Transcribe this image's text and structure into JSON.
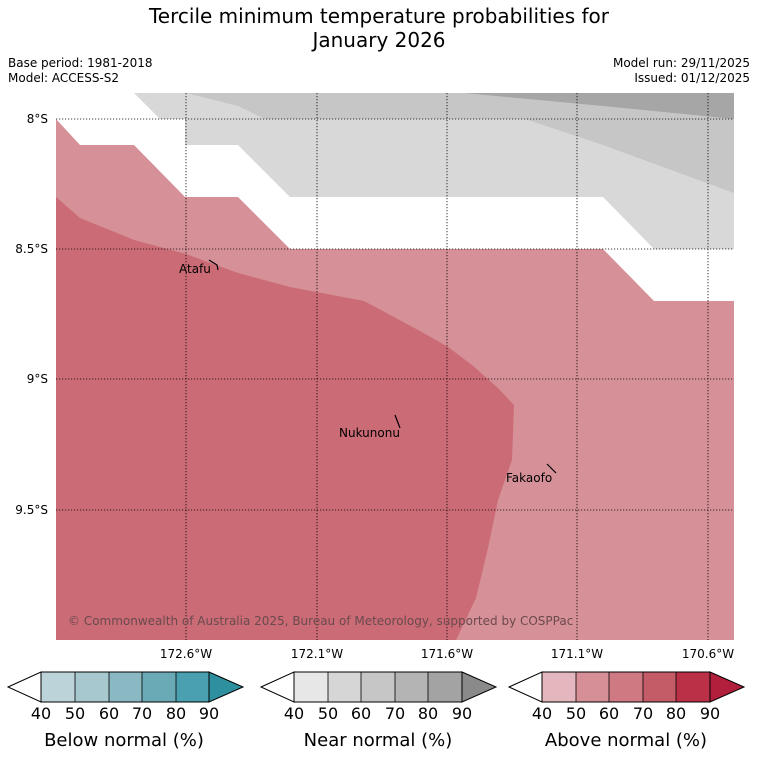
{
  "title_line1": "Tercile minimum temperature probabilities for",
  "title_line2": "January 2026",
  "base_period": "Base period: 1981-2018",
  "model": "Model: ACCESS-S2",
  "model_run": "Model run: 29/11/2025",
  "issued": "Issued: 01/12/2025",
  "copyright": "© Commonwealth of Australia 2025, Bureau of Meteorology, supported by COSPPac",
  "lat_labels": [
    "8°S",
    "8.5°S",
    "9°S",
    "9.5°S"
  ],
  "lon_labels": [
    "172.6°W",
    "172.1°W",
    "171.6°W",
    "171.1°W",
    "170.6°W"
  ],
  "places": [
    "Atafu",
    "Nukunonu",
    "Fakaofo"
  ],
  "colorbars": [
    {
      "label": "Below normal (%)",
      "ticks": [
        "40",
        "50",
        "60",
        "70",
        "80",
        "90"
      ],
      "colors": [
        "#bcd3d9",
        "#a6c8ce",
        "#8ab9c3",
        "#6aa9b6",
        "#4aa0b1",
        "#2e8f9e"
      ]
    },
    {
      "label": "Near normal (%)",
      "ticks": [
        "40",
        "50",
        "60",
        "70",
        "80",
        "90"
      ],
      "colors": [
        "#e7e7e7",
        "#d6d6d6",
        "#c6c6c6",
        "#b4b4b4",
        "#a3a3a3",
        "#8a8a8a"
      ]
    },
    {
      "label": "Above normal (%)",
      "ticks": [
        "40",
        "50",
        "60",
        "70",
        "80",
        "90"
      ],
      "colors": [
        "#e3b7bd",
        "#d78f97",
        "#cf7a83",
        "#c45c68",
        "#b93047",
        "#b21f3d"
      ]
    }
  ],
  "map_colors": {
    "above_40": "#d69097",
    "above_50": "#cb6b75",
    "near_40": "#d8d8d8",
    "near_50": "#c6c6c6",
    "near_60": "#a6a6a6"
  }
}
